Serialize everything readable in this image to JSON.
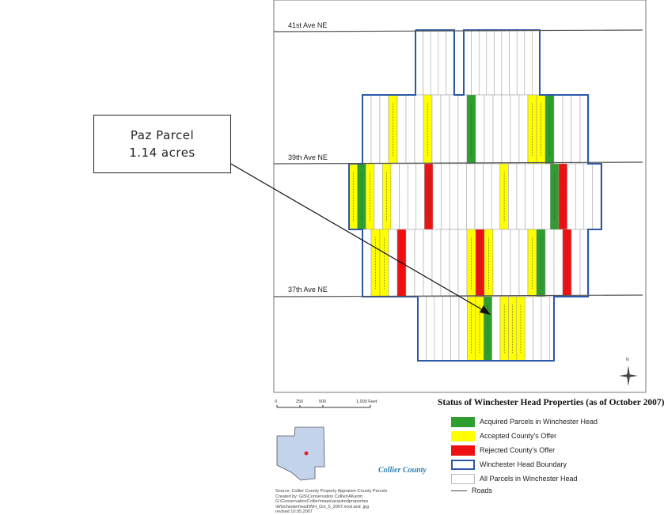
{
  "callout": {
    "line1": "Paz Parcel",
    "line2": "1.14 acres"
  },
  "roads": [
    {
      "label": "41st Ave NE"
    },
    {
      "label": "39th Ave NE"
    },
    {
      "label": "37th Ave NE"
    }
  ],
  "colors": {
    "acquired": "#2e9e2e",
    "accepted": "#ffff00",
    "rejected": "#ee1111",
    "boundary": "#2b58a8",
    "parcel_border": "#9a9a9a",
    "road": "#555555"
  },
  "parcel_status": {
    "upper_block": {
      "acquired": [
        12,
        21
      ],
      "accepted": [
        3,
        7,
        19,
        20
      ],
      "rejected": []
    },
    "middle_block": {
      "acquired": [
        1,
        24
      ],
      "accepted": [
        0,
        2,
        4,
        18
      ],
      "rejected": [
        9,
        25
      ]
    },
    "lower_block": {
      "acquired": [
        20
      ],
      "accepted": [
        1,
        2,
        12,
        14,
        19
      ],
      "rejected": [
        4,
        13,
        23
      ]
    },
    "south_block": {
      "acquired": [
        8
      ],
      "accepted": [
        6,
        7,
        10,
        11,
        12
      ],
      "rejected": []
    }
  },
  "scale": {
    "ticks": [
      "0",
      "250",
      "500",
      "1,000 Feet"
    ]
  },
  "legend": {
    "title": "Status of Winchester Head Properties (as of October 2007)",
    "items": [
      {
        "key": "acquired",
        "label": "Acquired Parcels in Winchester Head"
      },
      {
        "key": "accepted",
        "label": "Accepted County's Offer"
      },
      {
        "key": "rejected",
        "label": "Rejected County's Offer"
      },
      {
        "key": "boundary",
        "label": "Winchester Head Boundary"
      },
      {
        "key": "parcels",
        "label": "All Parcels in Winchester Head"
      },
      {
        "key": "roads",
        "label": "Roads"
      }
    ]
  },
  "logo": {
    "text": "Collier County"
  },
  "source_lines": [
    "Source: Collier County Property Appraiser-County Parcels",
    "Created by: GIS\\Conservation Collier\\AKarim",
    "G:\\ConservationCollier\\maps\\acquiredproperties",
    "\\Winchesterhead\\WH_Oct_5_2007.mxd and .jpg",
    "revised 10.05.2007"
  ],
  "north": {
    "label": "N"
  }
}
